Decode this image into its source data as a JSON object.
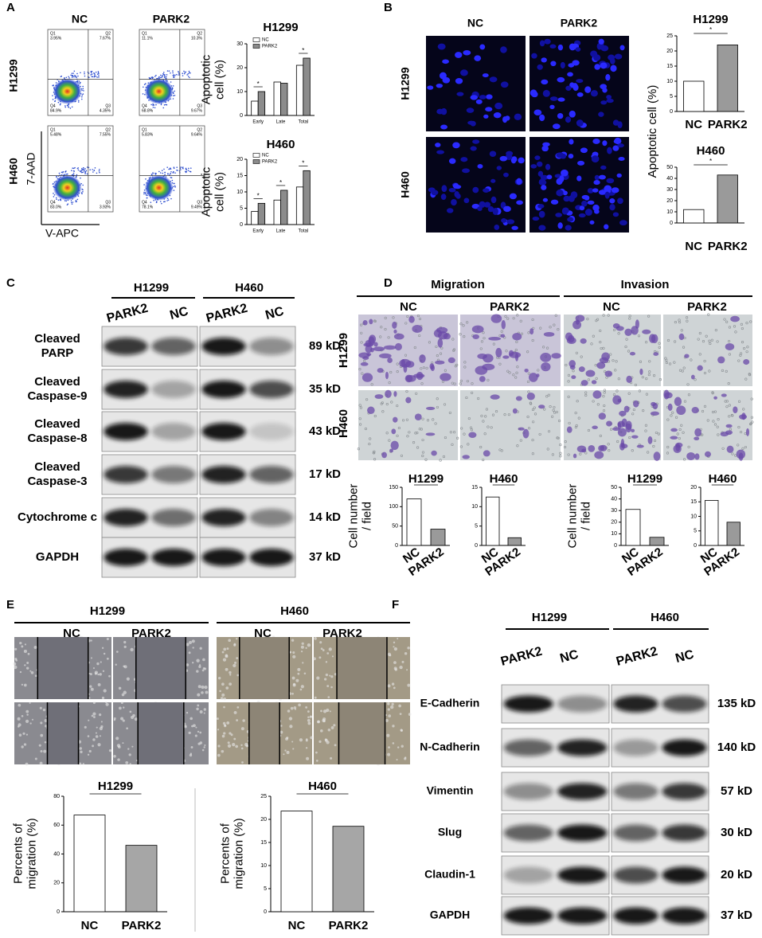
{
  "panels": {
    "A": {
      "label": "A",
      "columns": [
        "NC",
        "PARK2"
      ],
      "rows": [
        "H1299",
        "H460"
      ],
      "y_axis": "7-AAD",
      "x_axis": "V-APC",
      "quadrant_names": [
        "Q1",
        "Q2",
        "Q4",
        "Q3"
      ],
      "quadrants": [
        [
          "3.95%",
          "7.67%",
          "84.9%",
          "4.35%"
        ],
        [
          "11.1%",
          "10.3%",
          "68.8%",
          "9.67%"
        ],
        [
          "5.48%",
          "7.55%",
          "83.0%",
          "3.93%"
        ],
        [
          "5.83%",
          "9.64%",
          "78.1%",
          "9.49%"
        ]
      ]
    },
    "B": {
      "label": "B",
      "columns": [
        "NC",
        "PARK2"
      ],
      "rows": [
        "H1299",
        "H460"
      ]
    },
    "C": {
      "label": "C",
      "groups": [
        "H1299",
        "H460"
      ],
      "lanes": [
        "PARK2",
        "NC"
      ],
      "proteins": [
        [
          "Cleaved",
          "PARP"
        ],
        [
          "Cleaved",
          "Caspase-9"
        ],
        [
          "Cleaved",
          "Caspase-8"
        ],
        [
          "Cleaved",
          "Caspase-3"
        ],
        [
          "Cytochrome c"
        ],
        [
          "GAPDH"
        ]
      ],
      "sizes": [
        "89 kD",
        "35 kD",
        "43 kD",
        "17 kD",
        "14 kD",
        "37 kD"
      ]
    },
    "D": {
      "label": "D",
      "assays": [
        "Migration",
        "Invasion"
      ],
      "columns": [
        "NC",
        "PARK2"
      ],
      "rows": [
        "H1299",
        "H460"
      ]
    },
    "E": {
      "label": "E",
      "groups": [
        "H1299",
        "H460"
      ],
      "columns": [
        "NC",
        "PARK2"
      ]
    },
    "F": {
      "label": "F",
      "groups": [
        "H1299",
        "H460"
      ],
      "lanes": [
        "PARK2",
        "NC"
      ],
      "proteins": [
        "E-Cadherin",
        "N-Cadherin",
        "Vimentin",
        "Slug",
        "Claudin-1",
        "GAPDH"
      ],
      "sizes": [
        "135 kD",
        "140 kD",
        "57 kD",
        "30 kD",
        "20 kD",
        "37 kD"
      ]
    }
  },
  "chart_data": [
    {
      "type": "bar",
      "title": "H1299",
      "y_label": [
        "Apoptotic",
        "cell (%)"
      ],
      "categories": [
        "Early",
        "Late",
        "Total"
      ],
      "series": [
        {
          "name": "NC",
          "color": "#ffffff",
          "values": [
            6,
            14,
            21
          ]
        },
        {
          "name": "PARK2",
          "color": "#8c8c8c",
          "values": [
            10,
            13.5,
            24
          ]
        }
      ],
      "ylim": [
        0,
        30
      ],
      "yticks": [
        0,
        10,
        20,
        30
      ],
      "annotations": [
        "*",
        null,
        "*"
      ]
    },
    {
      "type": "bar",
      "title": "H460",
      "y_label": [
        "Apoptotic",
        "cell (%)"
      ],
      "categories": [
        "Early",
        "Late",
        "Total"
      ],
      "series": [
        {
          "name": "NC",
          "color": "#ffffff",
          "values": [
            4,
            7.5,
            11.5
          ]
        },
        {
          "name": "PARK2",
          "color": "#8c8c8c",
          "values": [
            6.5,
            10.5,
            16.5
          ]
        }
      ],
      "ylim": [
        0,
        20
      ],
      "yticks": [
        0,
        5,
        10,
        15,
        20
      ],
      "annotations": [
        "*",
        "*",
        "*"
      ]
    },
    {
      "type": "bar",
      "title": "H1299",
      "y_label": [
        "Apoptotic cell (%)"
      ],
      "categories": [
        "NC",
        "PARK2"
      ],
      "values": [
        10,
        22
      ],
      "colors": [
        "#ffffff",
        "#9a9a9a"
      ],
      "ylim": [
        0,
        25
      ],
      "yticks": [
        0,
        5,
        10,
        15,
        20,
        25
      ],
      "annotation": "*"
    },
    {
      "type": "bar",
      "title": "H460",
      "categories": [
        "NC",
        "PARK2"
      ],
      "values": [
        12,
        43
      ],
      "colors": [
        "#ffffff",
        "#9a9a9a"
      ],
      "ylim": [
        0,
        50
      ],
      "yticks": [
        0,
        10,
        20,
        30,
        40,
        50
      ],
      "annotation": "*"
    },
    {
      "type": "bar",
      "title": "H1299",
      "y_label": [
        "Cell number",
        "/ field"
      ],
      "categories": [
        "NC",
        "PARK2"
      ],
      "values": [
        120,
        42
      ],
      "colors": [
        "#ffffff",
        "#9a9a9a"
      ],
      "ylim": [
        0,
        150
      ],
      "yticks": [
        0,
        50,
        100,
        150
      ],
      "annotation": "*"
    },
    {
      "type": "bar",
      "title": "H460",
      "categories": [
        "NC",
        "PARK2"
      ],
      "values": [
        12.5,
        2
      ],
      "colors": [
        "#ffffff",
        "#9a9a9a"
      ],
      "ylim": [
        0,
        15
      ],
      "yticks": [
        0,
        5,
        10,
        15
      ],
      "annotation": "*"
    },
    {
      "type": "bar",
      "title": "H1299",
      "y_label": [
        "Cell number",
        "/ field"
      ],
      "categories": [
        "NC",
        "PARK2"
      ],
      "values": [
        31,
        7
      ],
      "colors": [
        "#ffffff",
        "#9a9a9a"
      ],
      "ylim": [
        0,
        50
      ],
      "yticks": [
        0,
        10,
        20,
        30,
        40,
        50
      ],
      "annotation": "*"
    },
    {
      "type": "bar",
      "title": "H460",
      "categories": [
        "NC",
        "PARK2"
      ],
      "values": [
        15.5,
        8
      ],
      "colors": [
        "#ffffff",
        "#9a9a9a"
      ],
      "ylim": [
        0,
        20
      ],
      "yticks": [
        0,
        5,
        10,
        15,
        20
      ],
      "annotation": "*"
    },
    {
      "type": "bar",
      "title": "H1299",
      "y_label": [
        "Percents of",
        "migration (%)"
      ],
      "categories": [
        "NC",
        "PARK2"
      ],
      "values": [
        67,
        46
      ],
      "colors": [
        "#ffffff",
        "#a6a6a6"
      ],
      "ylim": [
        0,
        80
      ],
      "yticks": [
        0,
        20,
        40,
        60,
        80
      ],
      "annotation": "*"
    },
    {
      "type": "bar",
      "title": "H460",
      "y_label": [
        "Percents of",
        "migration (%)"
      ],
      "categories": [
        "NC",
        "PARK2"
      ],
      "values": [
        21.8,
        18.5
      ],
      "colors": [
        "#ffffff",
        "#a6a6a6"
      ],
      "ylim": [
        0,
        25
      ],
      "yticks": [
        0,
        5,
        10,
        15,
        20,
        25
      ],
      "annotation": "*"
    }
  ]
}
